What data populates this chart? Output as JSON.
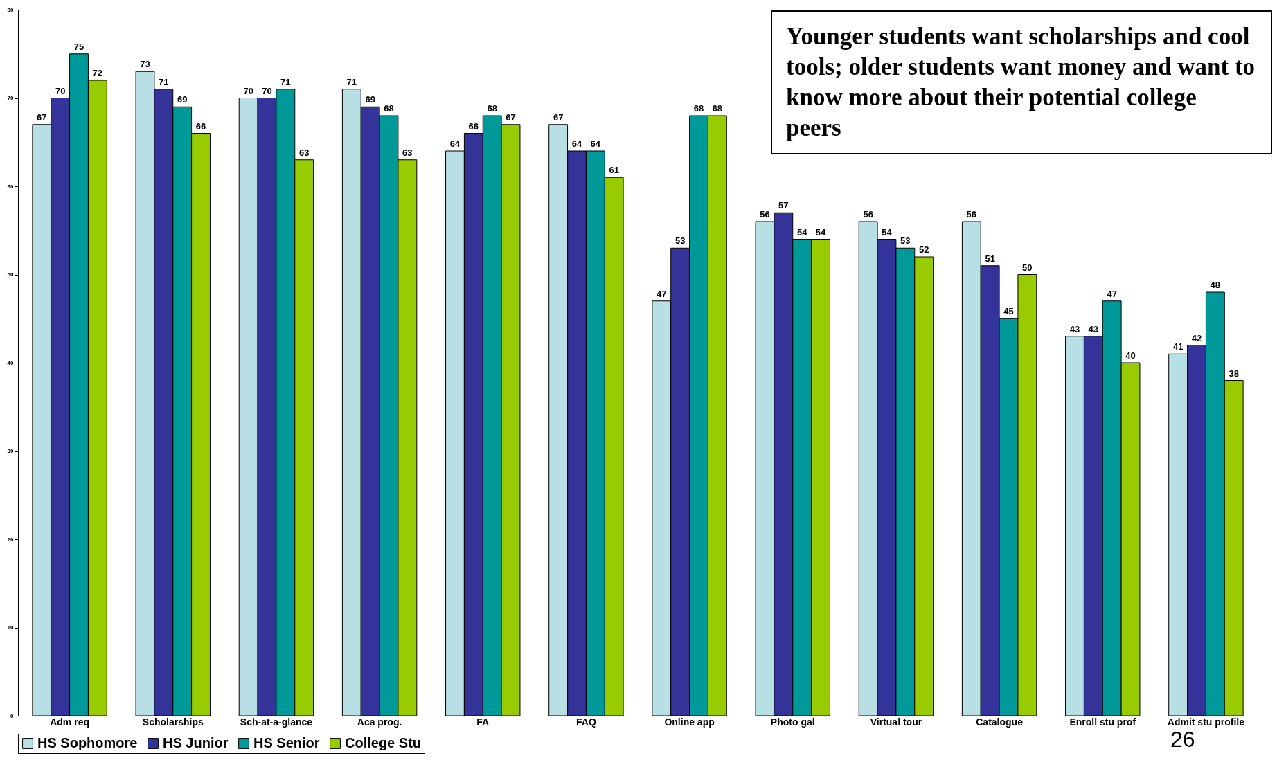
{
  "chart_data": {
    "type": "bar",
    "categories": [
      "Adm req",
      "Scholarships",
      "Sch-at-a-glance",
      "Aca prog.",
      "FA",
      "FAQ",
      "Online app",
      "Photo gal",
      "Virtual tour",
      "Catalogue",
      "Enroll stu prof",
      "Admit stu profile"
    ],
    "series": [
      {
        "name": "HS Sophomore",
        "color": "#b8dfe3",
        "values": [
          67,
          73,
          70,
          71,
          64,
          67,
          47,
          56,
          56,
          56,
          43,
          41
        ]
      },
      {
        "name": "HS Junior",
        "color": "#333399",
        "values": [
          70,
          71,
          70,
          69,
          66,
          64,
          53,
          57,
          54,
          51,
          43,
          42
        ]
      },
      {
        "name": "HS Senior",
        "color": "#009999",
        "values": [
          75,
          69,
          71,
          68,
          68,
          64,
          68,
          54,
          53,
          45,
          47,
          48
        ]
      },
      {
        "name": "College Stu",
        "color": "#99cc00",
        "values": [
          72,
          66,
          63,
          63,
          67,
          61,
          68,
          54,
          52,
          50,
          40,
          38
        ]
      }
    ],
    "ylim": [
      0,
      80
    ],
    "yticks": [
      0,
      10,
      20,
      30,
      40,
      50,
      60,
      70,
      80
    ],
    "data_labels": true,
    "legend": "bottom",
    "annotations": [
      "Younger students want scholarships and cool tools; older students want money and want to know more about their potential college peers",
      "26"
    ]
  }
}
